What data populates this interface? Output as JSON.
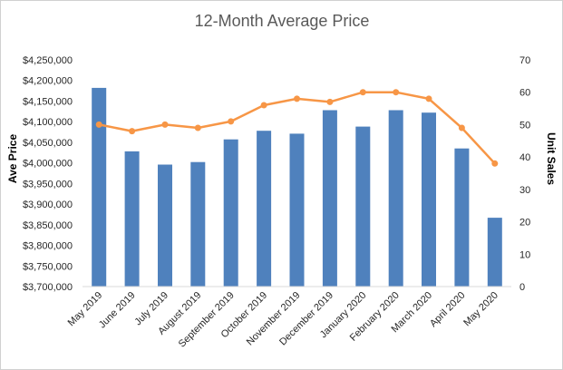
{
  "chart_data": {
    "type": "bar+line",
    "title": "12-Month Average Price",
    "categories": [
      "May 2019",
      "June 2019",
      "July 2019",
      "August 2019",
      "September 2019",
      "October 2019",
      "November 2019",
      "December 2019",
      "January 2020",
      "February 2020",
      "March 2020",
      "April 2020",
      "May 2020"
    ],
    "series": [
      {
        "name": "Ave Price",
        "type": "bar",
        "axis": "left",
        "color": "#4f81bd",
        "values": [
          4182000,
          4028000,
          3996000,
          4002000,
          4057000,
          4078000,
          4071000,
          4128000,
          4088000,
          4128000,
          4122000,
          4035000,
          3867000
        ]
      },
      {
        "name": "Unit Sales",
        "type": "line",
        "axis": "right",
        "color": "#f79646",
        "values": [
          50,
          48,
          50,
          49,
          51,
          56,
          58,
          57,
          60,
          60,
          58,
          49,
          38
        ]
      }
    ],
    "ylabel_left": "Ave Price",
    "ylabel_right": "Unit Sales",
    "ylim_left": [
      3700000,
      4250000
    ],
    "ylim_right": [
      0,
      70
    ],
    "yticks_left": [
      "$3,700,000",
      "$3,750,000",
      "$3,800,000",
      "$3,850,000",
      "$3,900,000",
      "$3,950,000",
      "$4,000,000",
      "$4,050,000",
      "$4,100,000",
      "$4,150,000",
      "$4,200,000",
      "$4,250,000"
    ],
    "yticks_right": [
      "0",
      "10",
      "20",
      "30",
      "40",
      "50",
      "60",
      "70"
    ],
    "grid": false,
    "legend": "none"
  }
}
